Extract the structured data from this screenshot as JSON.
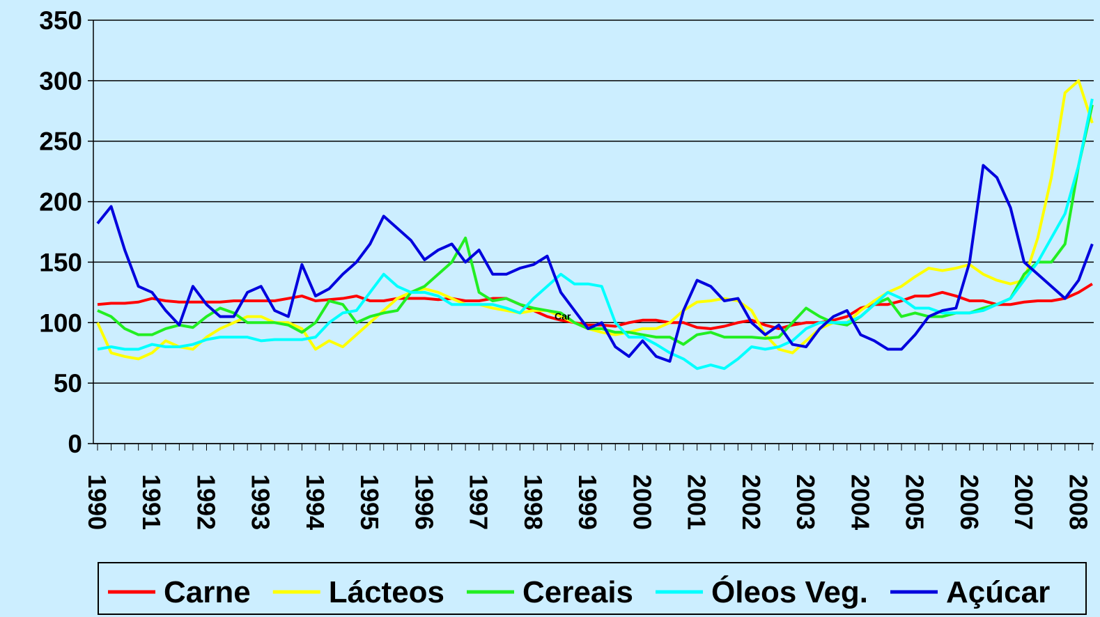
{
  "chart_data": {
    "type": "line",
    "categories": [
      "1990",
      null,
      null,
      null,
      "1991",
      null,
      null,
      null,
      "1992",
      null,
      null,
      null,
      "1993",
      null,
      null,
      null,
      "1994",
      null,
      null,
      null,
      "1995",
      null,
      null,
      null,
      "1996",
      null,
      null,
      null,
      "1997",
      null,
      null,
      null,
      "1998",
      null,
      null,
      null,
      "1999",
      null,
      null,
      null,
      "2000",
      null,
      null,
      null,
      "2001",
      null,
      null,
      null,
      "2002",
      null,
      null,
      null,
      "2003",
      null,
      null,
      null,
      "2004",
      null,
      null,
      null,
      "2005",
      null,
      null,
      null,
      "2006",
      null,
      null,
      null,
      "2007",
      null,
      null,
      null,
      "2008",
      null
    ],
    "series": [
      {
        "name": "Carne",
        "color": "#ff0000",
        "values": [
          115,
          116,
          116,
          117,
          120,
          118,
          117,
          117,
          117,
          117,
          118,
          118,
          118,
          118,
          120,
          122,
          118,
          119,
          120,
          122,
          118,
          118,
          120,
          120,
          120,
          119,
          120,
          118,
          118,
          120,
          120,
          115,
          110,
          105,
          102,
          100,
          98,
          98,
          97,
          100,
          102,
          102,
          100,
          100,
          96,
          95,
          97,
          100,
          102,
          98,
          95,
          98,
          100,
          100,
          102,
          105,
          112,
          115,
          115,
          118,
          122,
          122,
          125,
          122,
          118,
          118,
          115,
          115,
          117,
          118,
          118,
          120,
          125,
          132
        ]
      },
      {
        "name": "Lácteos",
        "color": "#ffff00",
        "values": [
          100,
          75,
          72,
          70,
          75,
          85,
          80,
          78,
          88,
          95,
          100,
          105,
          105,
          100,
          100,
          95,
          78,
          85,
          80,
          90,
          100,
          110,
          120,
          125,
          128,
          125,
          120,
          115,
          115,
          112,
          110,
          108,
          110,
          110,
          105,
          100,
          95,
          92,
          90,
          92,
          95,
          95,
          100,
          110,
          117,
          118,
          120,
          118,
          110,
          90,
          78,
          75,
          85,
          95,
          100,
          100,
          110,
          118,
          125,
          130,
          138,
          145,
          143,
          145,
          148,
          140,
          135,
          132,
          135,
          170,
          220,
          290,
          300,
          265
        ]
      },
      {
        "name": "Cereais",
        "color": "#22ee22",
        "values": [
          110,
          105,
          95,
          90,
          90,
          95,
          98,
          96,
          105,
          112,
          108,
          100,
          100,
          100,
          98,
          92,
          100,
          118,
          115,
          100,
          105,
          108,
          110,
          125,
          130,
          140,
          150,
          170,
          125,
          118,
          120,
          115,
          112,
          110,
          108,
          100,
          95,
          95,
          92,
          92,
          90,
          88,
          88,
          82,
          90,
          92,
          88,
          88,
          88,
          87,
          88,
          100,
          112,
          105,
          100,
          98,
          105,
          115,
          120,
          105,
          108,
          105,
          105,
          108,
          108,
          112,
          115,
          120,
          140,
          150,
          150,
          165,
          230,
          280
        ]
      },
      {
        "name": "Óleos Veg.",
        "color": "#00ffff",
        "values": [
          78,
          80,
          78,
          78,
          82,
          80,
          80,
          82,
          86,
          88,
          88,
          88,
          85,
          86,
          86,
          86,
          88,
          100,
          108,
          110,
          125,
          140,
          130,
          125,
          125,
          122,
          115,
          115,
          115,
          115,
          112,
          108,
          120,
          130,
          140,
          132,
          132,
          130,
          100,
          88,
          88,
          82,
          75,
          70,
          62,
          65,
          62,
          70,
          80,
          78,
          80,
          85,
          95,
          100,
          100,
          100,
          105,
          115,
          125,
          120,
          112,
          112,
          108,
          108,
          108,
          110,
          115,
          120,
          135,
          150,
          170,
          190,
          230,
          285
        ]
      },
      {
        "name": "Açúcar",
        "color": "#0000dd",
        "values": [
          182,
          196,
          160,
          130,
          125,
          110,
          98,
          130,
          115,
          105,
          105,
          125,
          130,
          110,
          105,
          148,
          122,
          128,
          140,
          150,
          165,
          188,
          178,
          168,
          152,
          160,
          165,
          150,
          160,
          140,
          140,
          145,
          148,
          155,
          125,
          110,
          95,
          100,
          80,
          72,
          85,
          72,
          68,
          110,
          135,
          130,
          118,
          120,
          100,
          90,
          98,
          82,
          80,
          95,
          105,
          110,
          90,
          85,
          78,
          78,
          90,
          105,
          110,
          112,
          150,
          230,
          220,
          195,
          150,
          140,
          130,
          120,
          135,
          165
        ]
      }
    ],
    "annotation": "Car",
    "ylim": [
      0,
      350
    ],
    "yticks": [
      0,
      50,
      100,
      150,
      200,
      250,
      300,
      350
    ],
    "grid": true,
    "legend": "bottom"
  }
}
